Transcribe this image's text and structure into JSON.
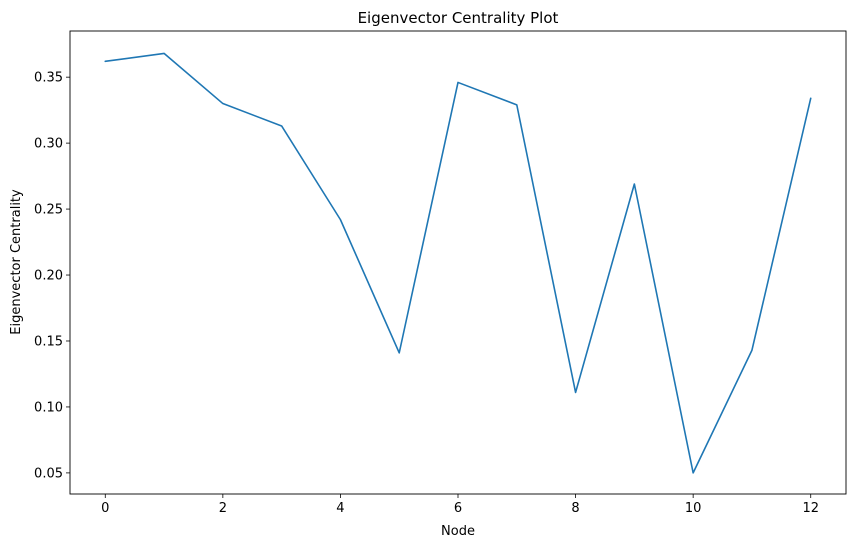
{
  "chart_data": {
    "type": "line",
    "title": "Eigenvector Centrality Plot",
    "xlabel": "Node",
    "ylabel": "Eigenvector Centrality",
    "xlim": [
      -0.6,
      12.6
    ],
    "ylim": [
      0.034,
      0.385
    ],
    "xticks": [
      0,
      2,
      4,
      6,
      8,
      10,
      12
    ],
    "xtick_labels": [
      "0",
      "2",
      "4",
      "6",
      "8",
      "10",
      "12"
    ],
    "yticks": [
      0.05,
      0.1,
      0.15,
      0.2,
      0.25,
      0.3,
      0.35
    ],
    "ytick_labels": [
      "0.05",
      "0.10",
      "0.15",
      "0.20",
      "0.25",
      "0.30",
      "0.35"
    ],
    "grid": false,
    "legend": "none",
    "series": [
      {
        "color": "#1f77b4",
        "x": [
          0,
          1,
          2,
          3,
          4,
          5,
          6,
          7,
          8,
          9,
          10,
          11,
          12
        ],
        "values": [
          0.362,
          0.368,
          0.33,
          0.313,
          0.242,
          0.141,
          0.346,
          0.329,
          0.111,
          0.269,
          0.05,
          0.143,
          0.334
        ]
      }
    ]
  }
}
